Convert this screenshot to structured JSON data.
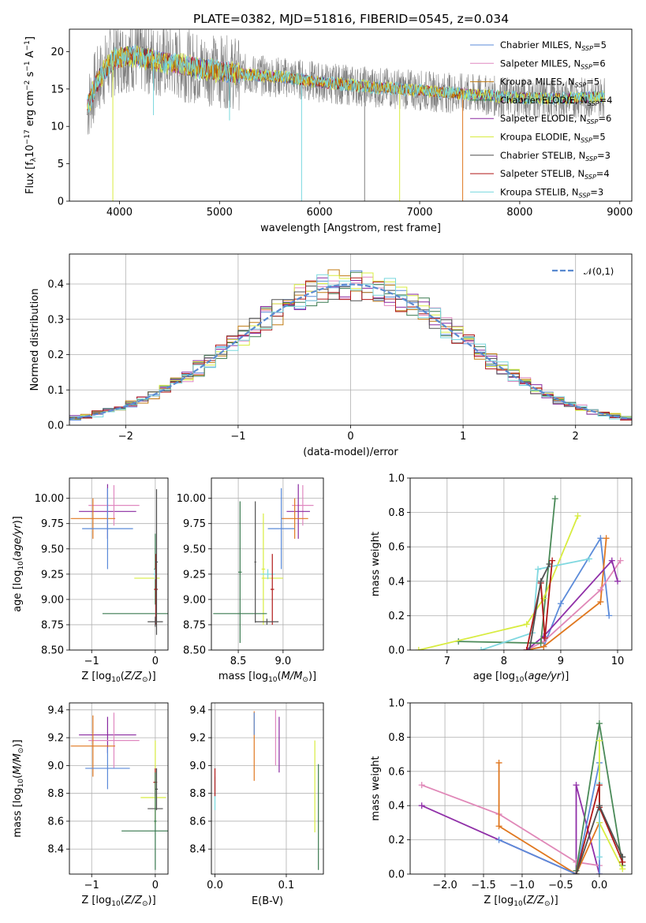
{
  "figure": {
    "title": "PLATE=0382, MJD=51816, FIBERID=0545, z=0.034"
  },
  "colors": {
    "chabrier_miles": "#5b8bd9",
    "salpeter_miles": "#e088c0",
    "kroupa_miles": "#c07a10",
    "chabrier_elodie": "#3a7a50",
    "salpeter_elodie": "#8a2aa0",
    "kroupa_elodie": "#d8ec40",
    "chabrier_stelib": "#505050",
    "salpeter_stelib": "#b01818",
    "kroupa_stelib": "#78d8de",
    "data": "#808080",
    "gauss": "#5a8ad0",
    "orange_line": "#e07820",
    "pink_line": "#e088b8",
    "purple_line": "#9030a8",
    "green_line": "#4a8a58",
    "yellow_line": "#d8ec40",
    "cyan_line": "#80d8e0"
  },
  "chart_data": [
    {
      "id": "spectrum",
      "type": "line",
      "xlabel": "wavelength [Angstrom, rest frame]",
      "ylabel": "Flux [f_λ10^-17 erg cm^-2 s^-1 A^-1]",
      "xlim": [
        3500,
        9120
      ],
      "ylim": [
        0,
        23
      ],
      "xticks": [
        "4000",
        "5000",
        "6000",
        "7000",
        "8000",
        "9000"
      ],
      "yticks": [
        "0",
        "5",
        "10",
        "15",
        "20"
      ],
      "grid": false,
      "legend_position": "top-right",
      "legend": [
        {
          "label": "Chabrier MILES, N",
          "sub": "SSP",
          "suffix": "=5",
          "color_key": "chabrier_miles"
        },
        {
          "label": "Salpeter MILES, N",
          "sub": "SSP",
          "suffix": "=6",
          "color_key": "salpeter_miles"
        },
        {
          "label": "Kroupa MILES, N",
          "sub": "SSP",
          "suffix": "=5",
          "color_key": "kroupa_miles"
        },
        {
          "label": "Chabrier ELODIE, N",
          "sub": "SSP",
          "suffix": "=4",
          "color_key": "chabrier_elodie"
        },
        {
          "label": "Salpeter ELODIE, N",
          "sub": "SSP",
          "suffix": "=6",
          "color_key": "salpeter_elodie"
        },
        {
          "label": "Kroupa ELODIE, N",
          "sub": "SSP",
          "suffix": "=5",
          "color_key": "kroupa_elodie"
        },
        {
          "label": "Chabrier STELIB, N",
          "sub": "SSP",
          "suffix": "=3",
          "color_key": "chabrier_stelib"
        },
        {
          "label": "Salpeter STELIB, N",
          "sub": "SSP",
          "suffix": "=4",
          "color_key": "salpeter_stelib"
        },
        {
          "label": "Kroupa STELIB, N",
          "sub": "SSP",
          "suffix": "=3",
          "color_key": "kroupa_stelib"
        }
      ],
      "continuum": {
        "x": [
          3680,
          3760,
          3850,
          3950,
          4100,
          4300,
          4500,
          4800,
          5100,
          5400,
          5700,
          6000,
          6300,
          6600,
          6900,
          7200,
          7500,
          7800,
          8100,
          8400,
          8700,
          8850
        ],
        "y": [
          12.5,
          15.5,
          17.5,
          19.0,
          19.5,
          19.0,
          18.5,
          17.8,
          17.2,
          16.8,
          16.5,
          15.9,
          15.5,
          15.2,
          14.9,
          14.6,
          14.3,
          14.0,
          13.8,
          13.7,
          13.9,
          14.0
        ]
      },
      "absorption_features": [
        {
          "x": 3934,
          "y": 0.0,
          "color_key": "kroupa_elodie"
        },
        {
          "x": 4340,
          "y": 11.5,
          "color_key": "kroupa_stelib"
        },
        {
          "x": 5100,
          "y": 10.8,
          "color_key": "kroupa_stelib"
        },
        {
          "x": 5820,
          "y": 0.0,
          "color_key": "kroupa_stelib"
        },
        {
          "x": 6450,
          "y": 0.0,
          "color_key": "data"
        },
        {
          "x": 6800,
          "y": 0.0,
          "color_key": "kroupa_elodie"
        },
        {
          "x": 7430,
          "y": 0.0,
          "color_key": "orange_line"
        }
      ]
    },
    {
      "id": "residuals",
      "type": "line",
      "xlabel": "(data-model)/error",
      "ylabel": "Normed distribution",
      "xlim": [
        -2.5,
        2.5
      ],
      "ylim": [
        0,
        0.485
      ],
      "xticks": [
        "−2",
        "−1",
        "0",
        "1",
        "2"
      ],
      "yticks": [
        "0.0",
        "0.1",
        "0.2",
        "0.3",
        "0.4"
      ],
      "grid": true,
      "legend_position": "top-right",
      "legend_label": "𝒩(0,1)",
      "gauss_mu": 0,
      "gauss_sigma": 1
    },
    {
      "id": "age_vs_Z",
      "type": "scatter",
      "xlabel": "Z [log10(Z/Z⊙)]",
      "ylabel": "age [log10(age/yr)]",
      "xlim": [
        -1.35,
        0.2
      ],
      "ylim": [
        8.5,
        10.2
      ],
      "xticks": [
        "−1",
        "0"
      ],
      "yticks": [
        "8.50",
        "8.75",
        "9.00",
        "9.25",
        "9.50",
        "9.75",
        "10.00"
      ],
      "grid": true,
      "points": [
        {
          "x": -0.75,
          "xerr": 0.45,
          "y": 9.87,
          "yerr": 0.27,
          "color_key": "salpeter_elodie"
        },
        {
          "x": -0.65,
          "xerr": 0.4,
          "y": 9.93,
          "yerr": 0.2,
          "color_key": "salpeter_miles"
        },
        {
          "x": -0.98,
          "xerr": 0.35,
          "y": 9.8,
          "yerr": 0.2,
          "color_key": "orange_line"
        },
        {
          "x": -0.75,
          "xerr": 0.4,
          "y": 9.7,
          "yerr": 0.4,
          "color_key": "chabrier_miles"
        },
        {
          "x": -0.03,
          "xerr": 0.8,
          "y": 8.86,
          "yerr": 0.0,
          "color_key": "chabrier_elodie"
        },
        {
          "x": 0.0,
          "xerr": 0.02,
          "y": 9.3,
          "yerr": 0.35,
          "color_key": "chabrier_elodie"
        },
        {
          "x": -0.13,
          "xerr": 0.2,
          "y": 9.21,
          "yerr": 0.0,
          "color_key": "kroupa_elodie"
        },
        {
          "x": 0.0,
          "xerr": 0.03,
          "y": 9.25,
          "yerr": 0.05,
          "color_key": "kroupa_stelib"
        },
        {
          "x": 0.01,
          "xerr": 0.03,
          "y": 9.1,
          "yerr": 0.35,
          "color_key": "salpeter_stelib"
        },
        {
          "x": 0.0,
          "xerr": 0.12,
          "y": 8.78,
          "yerr": 0.05,
          "color_key": "chabrier_stelib"
        },
        {
          "x": 0.02,
          "xerr": 0.02,
          "y": 9.37,
          "yerr": 0.72,
          "color_key": "chabrier_stelib"
        }
      ]
    },
    {
      "id": "age_vs_mass",
      "type": "scatter",
      "xlabel": "mass [log10(M/M⊙)]",
      "ylabel": "",
      "xlim": [
        8.2,
        9.45
      ],
      "ylim": [
        8.5,
        10.2
      ],
      "xticks": [
        "8.5",
        "9.0"
      ],
      "yticks": [
        "8.50",
        "8.75",
        "9.00",
        "9.25",
        "9.50",
        "9.75",
        "10.00"
      ],
      "grid": true,
      "points": [
        {
          "x": 9.22,
          "xerr": 0.12,
          "y": 9.93,
          "yerr": 0.2,
          "color_key": "salpeter_miles"
        },
        {
          "x": 9.17,
          "xerr": 0.13,
          "y": 9.87,
          "yerr": 0.27,
          "color_key": "salpeter_elodie"
        },
        {
          "x": 9.13,
          "xerr": 0.15,
          "y": 9.8,
          "yerr": 0.2,
          "color_key": "orange_line"
        },
        {
          "x": 8.98,
          "xerr": 0.15,
          "y": 9.7,
          "yerr": 0.4,
          "color_key": "chabrier_miles"
        },
        {
          "x": 8.88,
          "xerr": 0.12,
          "y": 9.21,
          "yerr": 0.0,
          "color_key": "kroupa_elodie"
        },
        {
          "x": 8.78,
          "xerr": 0.02,
          "y": 9.3,
          "yerr": 0.55,
          "color_key": "kroupa_elodie"
        },
        {
          "x": 8.83,
          "xerr": 0.08,
          "y": 9.25,
          "yerr": 0.05,
          "color_key": "kroupa_stelib"
        },
        {
          "x": 8.52,
          "xerr": 0.3,
          "y": 8.86,
          "yerr": 0.0,
          "color_key": "chabrier_elodie"
        },
        {
          "x": 8.52,
          "xerr": 0.02,
          "y": 9.27,
          "yerr": 0.7,
          "color_key": "chabrier_elodie"
        },
        {
          "x": 8.88,
          "xerr": 0.02,
          "y": 9.1,
          "yerr": 0.35,
          "color_key": "salpeter_stelib"
        },
        {
          "x": 8.82,
          "xerr": 0.13,
          "y": 8.78,
          "yerr": 0.03,
          "color_key": "chabrier_stelib"
        },
        {
          "x": 8.69,
          "xerr": 0.01,
          "y": 9.37,
          "yerr": 0.6,
          "color_key": "chabrier_stelib"
        }
      ]
    },
    {
      "id": "massweight_vs_age",
      "type": "line",
      "xlabel": "age [log10(age/yr)]",
      "ylabel": "mass weight",
      "xlim": [
        6.35,
        10.25
      ],
      "ylim": [
        0,
        1.0
      ],
      "xticks": [
        "7",
        "8",
        "9",
        "10"
      ],
      "yticks": [
        "0.0",
        "0.2",
        "0.4",
        "0.6",
        "0.8",
        "1.0"
      ],
      "grid": true,
      "series": [
        {
          "color_key": "chabrier_miles",
          "x": [
            8.4,
            8.7,
            9.0,
            9.7,
            9.85
          ],
          "y": [
            0.0,
            0.02,
            0.27,
            0.65,
            0.2
          ]
        },
        {
          "color_key": "orange_line",
          "x": [
            8.4,
            8.7,
            9.7,
            9.8
          ],
          "y": [
            0.0,
            0.02,
            0.28,
            0.65
          ]
        },
        {
          "color_key": "pink_line",
          "x": [
            8.4,
            8.7,
            9.7,
            10.05
          ],
          "y": [
            0.0,
            0.05,
            0.35,
            0.52
          ]
        },
        {
          "color_key": "purple_line",
          "x": [
            8.4,
            8.7,
            9.9,
            10.0
          ],
          "y": [
            0.0,
            0.08,
            0.52,
            0.4
          ]
        },
        {
          "color_key": "green_line",
          "x": [
            7.2,
            8.65,
            8.9
          ],
          "y": [
            0.05,
            0.04,
            0.88
          ]
        },
        {
          "color_key": "yellow_line",
          "x": [
            6.5,
            8.4,
            8.7,
            9.3
          ],
          "y": [
            0.0,
            0.15,
            0.3,
            0.78
          ]
        },
        {
          "color_key": "cyan_line",
          "x": [
            7.6,
            8.5,
            8.6,
            9.5
          ],
          "y": [
            0.0,
            0.1,
            0.47,
            0.53
          ]
        },
        {
          "color_key": "salpeter_stelib",
          "x": [
            8.4,
            8.65,
            8.72,
            8.85
          ],
          "y": [
            0.0,
            0.39,
            0.07,
            0.52
          ]
        },
        {
          "color_key": "chabrier_stelib",
          "x": [
            8.45,
            8.65,
            8.8
          ],
          "y": [
            0.0,
            0.4,
            0.5
          ]
        }
      ]
    },
    {
      "id": "mass_vs_Z",
      "type": "scatter",
      "xlabel": "Z [log10(Z/Z⊙)]",
      "ylabel": "mass [log10(M/M⊙)]",
      "xlim": [
        -1.35,
        0.2
      ],
      "ylim": [
        8.22,
        9.45
      ],
      "xticks": [
        "−1",
        "0"
      ],
      "yticks": [
        "8.4",
        "8.6",
        "8.8",
        "9.0",
        "9.2",
        "9.4"
      ],
      "grid": true,
      "points": [
        {
          "x": -0.75,
          "xerr": 0.45,
          "y": 9.22,
          "yerr": 0.13,
          "color_key": "salpeter_elodie"
        },
        {
          "x": -0.65,
          "xerr": 0.4,
          "y": 9.18,
          "yerr": 0.2,
          "color_key": "salpeter_miles"
        },
        {
          "x": -0.98,
          "xerr": 0.35,
          "y": 9.14,
          "yerr": 0.22,
          "color_key": "orange_line"
        },
        {
          "x": -0.75,
          "xerr": 0.35,
          "y": 8.98,
          "yerr": 0.15,
          "color_key": "chabrier_miles"
        },
        {
          "x": -0.03,
          "xerr": 0.2,
          "y": 8.77,
          "yerr": 0.0,
          "color_key": "kroupa_elodie"
        },
        {
          "x": 0.0,
          "xerr": 0.02,
          "y": 8.88,
          "yerr": 0.3,
          "color_key": "kroupa_elodie"
        },
        {
          "x": 0.0,
          "xerr": 0.03,
          "y": 8.88,
          "yerr": 0.1,
          "color_key": "salpeter_stelib"
        },
        {
          "x": 0.0,
          "xerr": 0.12,
          "y": 8.69,
          "yerr": 0.0,
          "color_key": "chabrier_stelib"
        },
        {
          "x": 0.02,
          "xerr": 0.02,
          "y": 8.83,
          "yerr": 0.15,
          "color_key": "chabrier_stelib"
        },
        {
          "x": -0.03,
          "xerr": 0.5,
          "y": 8.53,
          "yerr": 0.0,
          "color_key": "chabrier_elodie"
        },
        {
          "x": 0.0,
          "xerr": 0.02,
          "y": 8.6,
          "yerr": 0.35,
          "color_key": "chabrier_elodie"
        }
      ]
    },
    {
      "id": "mass_vs_ebv",
      "type": "scatter",
      "xlabel": "E(B-V)",
      "ylabel": "",
      "xlim": [
        -0.005,
        0.152
      ],
      "ylim": [
        8.22,
        9.45
      ],
      "xticks": [
        "0.0",
        "0.1"
      ],
      "yticks": [
        "8.4",
        "8.6",
        "8.8",
        "9.0",
        "9.2",
        "9.4"
      ],
      "grid": true,
      "points": [
        {
          "x": 0.0,
          "xerr": 0.0,
          "y": 8.8,
          "yerr": 0.12,
          "color_key": "kroupa_stelib"
        },
        {
          "x": 0.0,
          "xerr": 0.0,
          "y": 8.88,
          "yerr": 0.1,
          "color_key": "salpeter_stelib"
        },
        {
          "x": 0.055,
          "xerr": 0.0,
          "y": 9.14,
          "yerr": 0.25,
          "color_key": "orange_line"
        },
        {
          "x": 0.055,
          "xerr": 0.0,
          "y": 9.3,
          "yerr": 0.08,
          "color_key": "chabrier_miles"
        },
        {
          "x": 0.085,
          "xerr": 0.0,
          "y": 9.2,
          "yerr": 0.2,
          "color_key": "salpeter_miles"
        },
        {
          "x": 0.09,
          "xerr": 0.0,
          "y": 9.15,
          "yerr": 0.2,
          "color_key": "salpeter_elodie"
        },
        {
          "x": 0.14,
          "xerr": 0.0,
          "y": 8.85,
          "yerr": 0.33,
          "color_key": "kroupa_elodie"
        },
        {
          "x": 0.145,
          "xerr": 0.0,
          "y": 8.63,
          "yerr": 0.38,
          "color_key": "chabrier_elodie"
        }
      ]
    },
    {
      "id": "massweight_vs_Z",
      "type": "line",
      "xlabel": "Z [log10(Z/Z⊙)]",
      "ylabel": "mass weight",
      "xlim": [
        -2.45,
        0.42
      ],
      "ylim": [
        0,
        1.0
      ],
      "xticks": [
        "−2.0",
        "−1.5",
        "−1.0",
        "−0.5",
        "0.0"
      ],
      "yticks": [
        "0.0",
        "0.2",
        "0.4",
        "0.6",
        "0.8",
        "1.0"
      ],
      "grid": true,
      "series": [
        {
          "color_key": "purple_line",
          "x": [
            -2.3,
            -0.3,
            -0.3,
            0.0
          ],
          "y": [
            0.4,
            0.0,
            0.52,
            0.0
          ]
        },
        {
          "color_key": "pink_line",
          "x": [
            -2.3,
            -1.3,
            -0.3,
            0.0
          ],
          "y": [
            0.52,
            0.35,
            0.07,
            0.05
          ]
        },
        {
          "color_key": "orange_line",
          "x": [
            -1.3,
            -1.3,
            -0.3,
            0.0
          ],
          "y": [
            0.65,
            0.28,
            0.0,
            0.3
          ]
        },
        {
          "color_key": "chabrier_miles",
          "x": [
            -1.3,
            -0.3,
            0.0,
            0.0
          ],
          "y": [
            0.2,
            0.0,
            0.65,
            0.0
          ]
        },
        {
          "color_key": "green_line",
          "x": [
            -0.3,
            0.0,
            0.3
          ],
          "y": [
            0.02,
            0.88,
            0.05
          ]
        },
        {
          "color_key": "yellow_line",
          "x": [
            0.0,
            0.0,
            0.3
          ],
          "y": [
            0.78,
            0.3,
            0.03
          ]
        },
        {
          "color_key": "cyan_line",
          "x": [
            0.0,
            0.0
          ],
          "y": [
            0.53,
            0.1
          ]
        },
        {
          "color_key": "salpeter_stelib",
          "x": [
            -0.3,
            0.0,
            0.0,
            0.3
          ],
          "y": [
            0.0,
            0.52,
            0.39,
            0.07
          ]
        },
        {
          "color_key": "chabrier_stelib",
          "x": [
            -0.3,
            0.0,
            0.3
          ],
          "y": [
            0.0,
            0.4,
            0.1
          ]
        }
      ]
    }
  ]
}
